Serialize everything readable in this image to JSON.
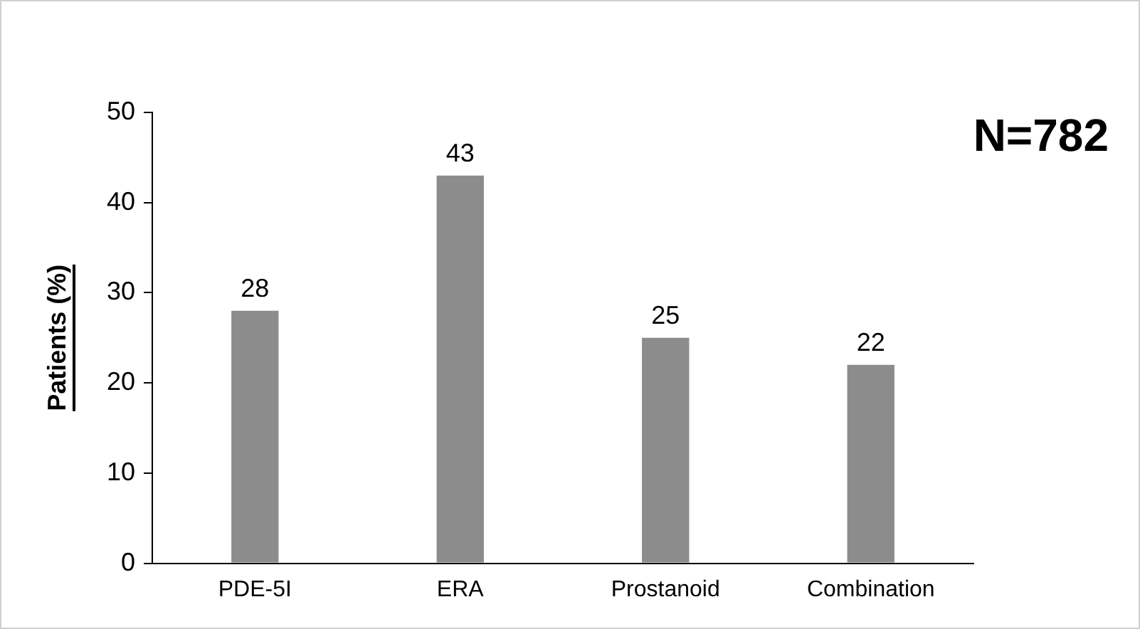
{
  "chart_data": {
    "type": "bar",
    "ylabel": "Patients (%)",
    "categories": [
      "PDE-5I",
      "ERA",
      "Prostanoid",
      "Combination"
    ],
    "values": [
      28,
      43,
      25,
      22
    ],
    "color": "#8c8c8c",
    "ylim": [
      0,
      50
    ],
    "yticks": [
      0,
      10,
      20,
      30,
      40,
      50
    ],
    "grid": false,
    "legend": false,
    "data_labels": true,
    "annotations": [
      "N=782"
    ]
  }
}
